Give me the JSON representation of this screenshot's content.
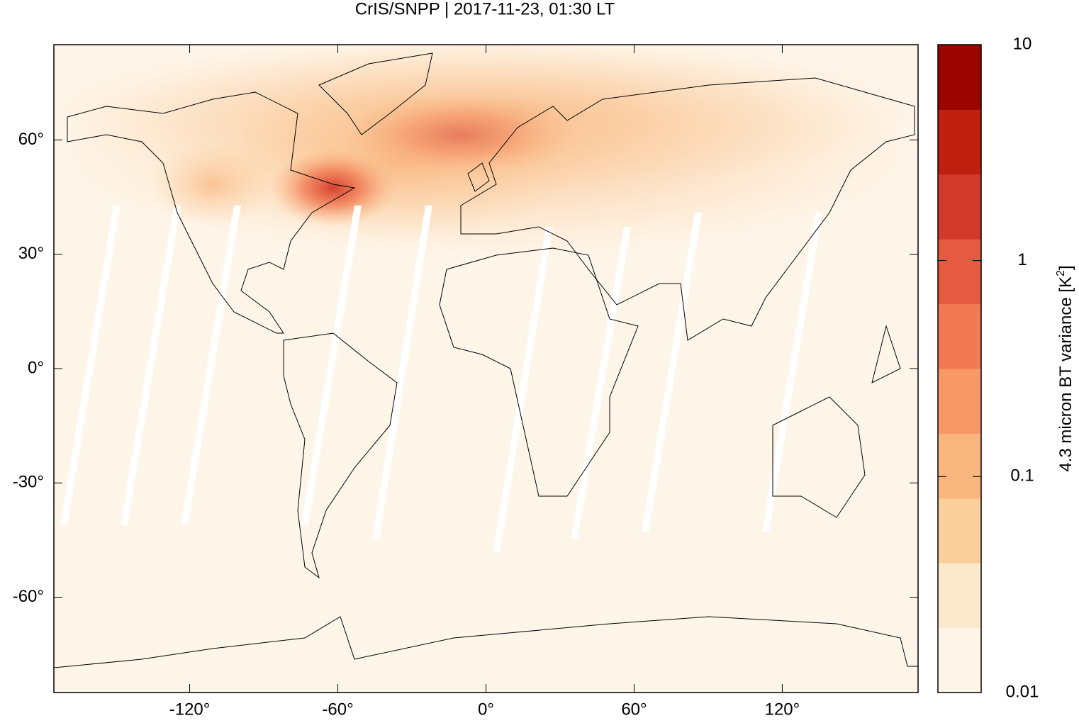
{
  "chart_data": {
    "type": "map",
    "title": "CrIS/SNPP | 2017-11-23, 01:30 LT",
    "xlim": [
      -175,
      175
    ],
    "ylim": [
      -85,
      85
    ],
    "xticks": [
      {
        "value": -120,
        "label": "-120°"
      },
      {
        "value": -60,
        "label": "-60°"
      },
      {
        "value": 0,
        "label": "0°"
      },
      {
        "value": 60,
        "label": "60°"
      },
      {
        "value": 120,
        "label": "120°"
      }
    ],
    "yticks": [
      {
        "value": 60,
        "label": "60°"
      },
      {
        "value": 30,
        "label": "30°"
      },
      {
        "value": 0,
        "label": "0°"
      },
      {
        "value": -30,
        "label": "-30°"
      },
      {
        "value": -60,
        "label": "-60°"
      }
    ],
    "colorbar": {
      "label_text": "4.3 micron BT variance [K",
      "label_sup": "2",
      "label_end": "]",
      "lim": [
        0.01,
        10
      ],
      "log": true,
      "ticks": [
        0.01,
        0.1,
        1,
        10
      ],
      "colors": [
        "#fef5e9",
        "#fce8cc",
        "#fbcf9c",
        "#f9b57e",
        "#f79866",
        "#f17a52",
        "#e55a40",
        "#d3392a",
        "#bf2010",
        "#9b0600"
      ]
    }
  }
}
